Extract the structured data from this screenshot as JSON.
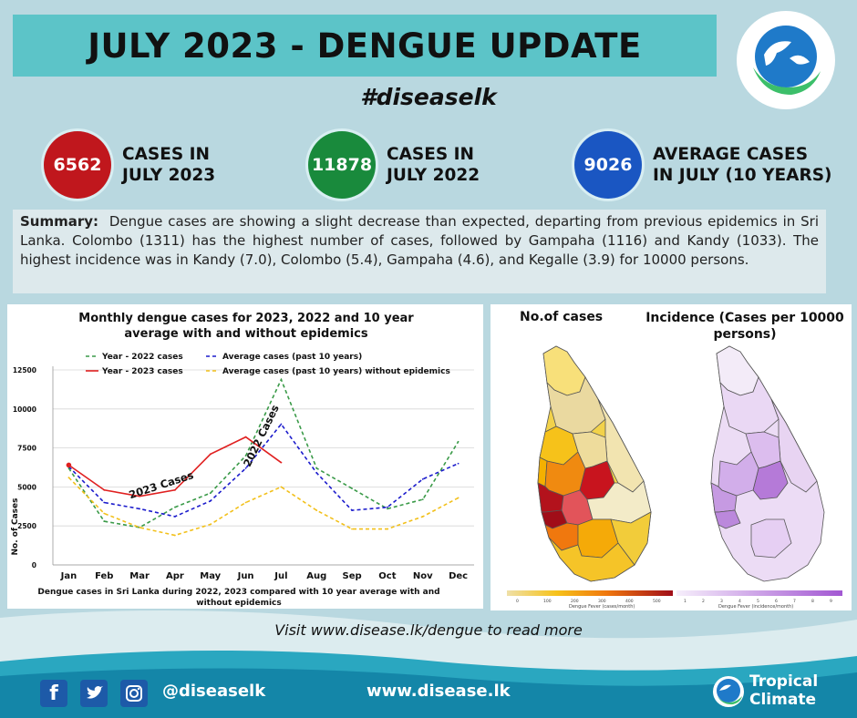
{
  "header": {
    "title": "JULY 2023 - DENGUE UPDATE",
    "hashtag": "#diseaselk"
  },
  "stats": [
    {
      "value": "6562",
      "line1": "CASES IN",
      "line2": "JULY 2023",
      "color": "#c0171d"
    },
    {
      "value": "11878",
      "line1": "CASES IN",
      "line2": "JULY 2022",
      "color": "#198a3c"
    },
    {
      "value": "9026",
      "line1": "AVERAGE CASES",
      "line2": "IN JULY (10 YEARS)",
      "color": "#1a56c2"
    }
  ],
  "summary": {
    "label": "Summary:",
    "text": "Dengue cases are showing a slight decrease than expected, departing from previous epidemics in Sri Lanka. Colombo (1311) has the highest number of cases, followed by Gampaha (1116) and Kandy (1033). The highest incidence was in Kandy (7.0), Colombo (5.4), Gampaha (4.6), and Kegalle (3.9) for 10000 persons."
  },
  "chart_data": {
    "type": "line",
    "title_line1": "Monthly dengue cases for 2023, 2022 and 10 year",
    "title_line2": "average with and without epidemics",
    "ylabel": "No. of Cases",
    "caption_line1": "Dengue cases in Sri Lanka during 2022, 2023 compared with 10 year average with and",
    "caption_line2": "without epidemics",
    "categories": [
      "Jan",
      "Feb",
      "Mar",
      "Apr",
      "May",
      "Jun",
      "Jul",
      "Aug",
      "Sep",
      "Oct",
      "Nov",
      "Dec"
    ],
    "yticks": [
      "0",
      "2500",
      "5000",
      "7500",
      "10000",
      "12500"
    ],
    "ylim": [
      0,
      12500
    ],
    "grid": true,
    "legend_position": "top",
    "series": [
      {
        "name": "Year - 2022 cases",
        "color": "#3a9a48",
        "dash": true,
        "values": [
          6200,
          2800,
          2400,
          3700,
          4600,
          7000,
          11878,
          6200,
          4900,
          3600,
          4200,
          7900
        ]
      },
      {
        "name": "Year - 2023 cases",
        "color": "#e02020",
        "dash": false,
        "values": [
          6400,
          4800,
          4400,
          4800,
          7100,
          8200,
          6562,
          null,
          null,
          null,
          null,
          null
        ]
      },
      {
        "name": "Average cases (past 10 years)",
        "color": "#1c1ccc",
        "dash": true,
        "values": [
          6300,
          4000,
          3600,
          3100,
          4100,
          6200,
          9026,
          5900,
          3500,
          3700,
          5500,
          6500
        ]
      },
      {
        "name": "Average cases (past 10 years) without epidemics",
        "color": "#f2c01a",
        "dash": true,
        "values": [
          5600,
          3300,
          2400,
          1900,
          2600,
          4000,
          5000,
          3500,
          2300,
          2300,
          3100,
          4300
        ]
      }
    ],
    "annotations": [
      "2022 Cases",
      "2023 Cases"
    ]
  },
  "maps": {
    "left_title": "No.of cases",
    "right_title_line1": "Incidence (Cases per 10000",
    "right_title_line2": "persons)",
    "left_scale_ticks": [
      "0",
      "100",
      "200",
      "300",
      "400",
      "500"
    ],
    "left_scale_label": "Dengue Fever (cases/month)",
    "right_scale_ticks": [
      "1",
      "2",
      "3",
      "4",
      "5",
      "6",
      "7",
      "8",
      "9"
    ],
    "right_scale_label": "Dengue Fever (incidence/month)"
  },
  "footer": {
    "visit_text": "Visit www.disease.lk/dengue to read more",
    "handle": "@diseaselk",
    "website": "www.disease.lk",
    "brand_line1": "Tropical",
    "brand_line2": "Climate"
  }
}
